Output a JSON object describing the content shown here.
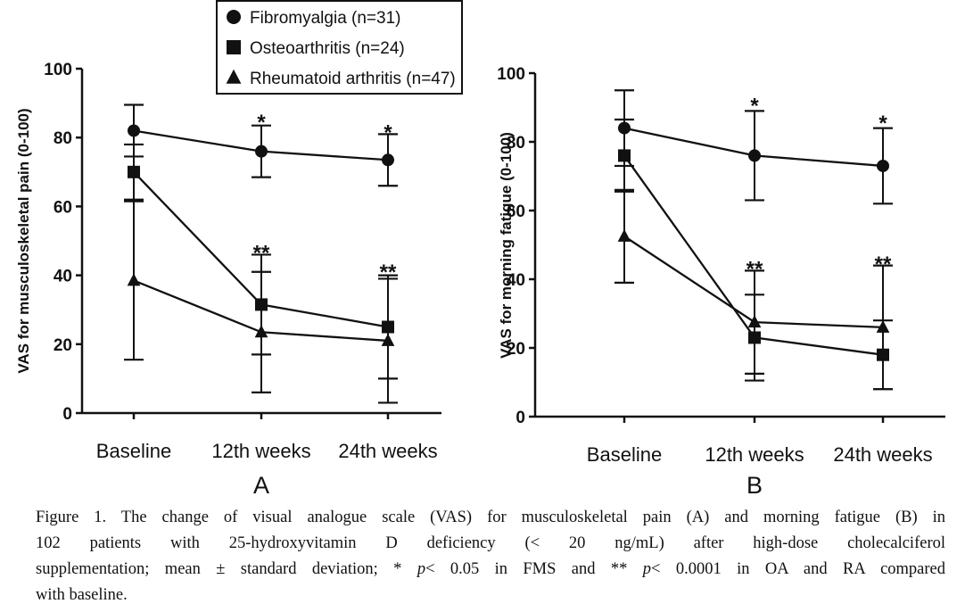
{
  "legend": {
    "entries": [
      {
        "marker": "circle",
        "label": "Fibromyalgia (n=31)"
      },
      {
        "marker": "square",
        "label": "Osteoarthritis (n=24)"
      },
      {
        "marker": "triangle",
        "label": "Rheumatoid arthritis (n=47)"
      }
    ]
  },
  "chart_data": [
    {
      "type": "line",
      "panel_label": "A",
      "title": "",
      "xlabel": "",
      "ylabel": "VAS for  musculoskeletal pain (0-100)",
      "categories": [
        "Baseline",
        "12th weeks",
        "24th weeks"
      ],
      "yticks": [
        "0",
        "20",
        "40",
        "60",
        "80",
        "100"
      ],
      "ylim": [
        0,
        100
      ],
      "grid": false,
      "series": [
        {
          "name": "Fibromyalgia (n=31)",
          "marker": "circle",
          "values": [
            82,
            76,
            73.5
          ],
          "sd": [
            7.5,
            7.5,
            7.5
          ]
        },
        {
          "name": "Osteoarthritis (n=24)",
          "marker": "square",
          "values": [
            70,
            31.5,
            25
          ],
          "sd": [
            8,
            14.5,
            15
          ]
        },
        {
          "name": "Rheumatoid arthritis (n=47)",
          "marker": "triangle",
          "values": [
            38.5,
            23.5,
            21
          ],
          "sd": [
            23,
            17.5,
            18
          ]
        }
      ],
      "annotations": [
        {
          "category": "12th weeks",
          "text": "*",
          "at": 85
        },
        {
          "category": "24th weeks",
          "text": "*",
          "at": 82
        },
        {
          "category": "12th weeks",
          "text": "**",
          "at": 47
        },
        {
          "category": "24th weeks",
          "text": "**",
          "at": 41.5
        }
      ]
    },
    {
      "type": "line",
      "panel_label": "B",
      "title": "",
      "xlabel": "",
      "ylabel": "VAS for morning fatigue (0-100)",
      "categories": [
        "Baseline",
        "12th weeks",
        "24th weeks"
      ],
      "yticks": [
        "0",
        "20",
        "40",
        "60",
        "80",
        "100"
      ],
      "ylim": [
        0,
        100
      ],
      "grid": false,
      "series": [
        {
          "name": "Fibromyalgia (n=31)",
          "marker": "circle",
          "values": [
            84,
            76,
            73
          ],
          "sd": [
            11,
            13,
            11
          ]
        },
        {
          "name": "Osteoarthritis (n=24)",
          "marker": "square",
          "values": [
            76,
            23,
            18
          ],
          "sd": [
            10.5,
            12.5,
            10
          ]
        },
        {
          "name": "Rheumatoid arthritis (n=47)",
          "marker": "triangle",
          "values": [
            52.5,
            27.5,
            26
          ],
          "sd": [
            13.5,
            15,
            18
          ]
        }
      ],
      "annotations": [
        {
          "category": "12th weeks",
          "text": "*",
          "at": 91
        },
        {
          "category": "24th weeks",
          "text": "*",
          "at": 86
        },
        {
          "category": "12th weeks",
          "text": "**",
          "at": 43.5
        },
        {
          "category": "24th weeks",
          "text": "**",
          "at": 45
        }
      ]
    }
  ],
  "caption": {
    "line1": "Figure 1. The change of visual analogue scale (VAS) for musculoskeletal pain (A) and morning fatigue (B) in",
    "line2": "102 patients with 25-hydroxyvitamin D deficiency (< 20 ng/mL) after high-dose cholecalciferol",
    "line3_a": "supplementation; mean ± standard deviation; * ",
    "p1": "p",
    "line3_b": "< 0.05 in FMS and ** ",
    "p2": "p",
    "line3_c": "< 0.0001 in OA and RA compared",
    "line4": "with baseline."
  }
}
